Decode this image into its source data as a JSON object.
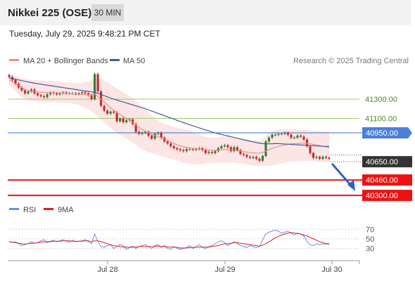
{
  "instrument": {
    "title": "Nikkei 225 (OSE)",
    "interval": "30 MIN"
  },
  "timestamp": "Tuesday, July 29, 2025 9:48:21 PM CET",
  "credit": "Research © 2025 Trading Central",
  "colors": {
    "ma20": "#f28c8c",
    "ma50": "#3f5f95",
    "band": "#fbdcdc",
    "bull": "#2e7d32",
    "bear": "#c62828",
    "resistance": "#9ccc65",
    "pivot": "#4a7fdc",
    "support": "#ee1111",
    "price": "#333333",
    "rsi": "#6e8fe0",
    "rsi_ma": "#dd2222",
    "arrow": "#2a63c6"
  },
  "legend": {
    "ma20": "MA 20 + Bollinger Bands",
    "ma50": "MA 50",
    "rsi": "RSI",
    "rsi_ma": "9MA"
  },
  "chart_data": [
    {
      "type": "candlestick",
      "x_labels": [
        "Jul 28",
        "Jul 29",
        "Jul 30"
      ],
      "ylim": [
        40250,
        41600
      ],
      "levels": [
        {
          "label": "41300.00",
          "value": 41300,
          "kind": "resistance"
        },
        {
          "label": "41100.00",
          "value": 41100,
          "kind": "resistance"
        },
        {
          "label": "40950.00",
          "value": 40950,
          "kind": "pivot"
        },
        {
          "label": "40650.00",
          "value": 40650,
          "kind": "price"
        },
        {
          "label": "40460.00",
          "value": 40460,
          "kind": "support"
        },
        {
          "label": "40300.00",
          "value": 40300,
          "kind": "support"
        }
      ],
      "close": [
        41530,
        41500,
        41460,
        41420,
        41390,
        41360,
        41380,
        41400,
        41360,
        41340,
        41330,
        41320,
        41350,
        41370,
        41360,
        41350,
        41360,
        41370,
        41360,
        41360,
        41360,
        41355,
        41360,
        41370,
        41360,
        41340,
        41300,
        41560,
        41380,
        41230,
        41180,
        41150,
        41170,
        41160,
        41070,
        41100,
        41060,
        41080,
        41090,
        41040,
        40960,
        40940,
        40950,
        40960,
        40920,
        40890,
        40940,
        40950,
        40900,
        40860,
        40840,
        40810,
        40790,
        40780,
        40770,
        40760,
        40780,
        40780,
        40775,
        40780,
        40790,
        40770,
        40740,
        40750,
        40740,
        40760,
        40790,
        40810,
        40820,
        40800,
        40760,
        40800,
        40770,
        40730,
        40720,
        40700,
        40690,
        40700,
        40680,
        40660,
        40710,
        40860,
        40900,
        40930,
        40930,
        40940,
        40940,
        40950,
        40930,
        40900,
        40900,
        40920,
        40910,
        40880,
        40810,
        40740,
        40690,
        40700,
        40680,
        40700,
        40690,
        40680
      ],
      "ma20": [
        41500,
        41480,
        41460,
        41440,
        41420,
        41400,
        41390,
        41385,
        41380,
        41375,
        41372,
        41370,
        41368,
        41366,
        41365,
        41364,
        41363,
        41362,
        41360,
        41358,
        41355,
        41352,
        41350,
        41348,
        41346,
        41344,
        41350,
        41355,
        41330,
        41300,
        41270,
        41240,
        41210,
        41185,
        41160,
        41140,
        41120,
        41100,
        41080,
        41060,
        41030,
        41005,
        40985,
        40965,
        40950,
        40935,
        40920,
        40910,
        40900,
        40885,
        40870,
        40855,
        40840,
        40825,
        40815,
        40805,
        40800,
        40795,
        40790,
        40785,
        40782,
        40778,
        40775,
        40772,
        40770,
        40770,
        40772,
        40774,
        40776,
        40775,
        40772,
        40770,
        40766,
        40760,
        40755,
        40750,
        40745,
        40742,
        40740,
        40738,
        40745,
        40760,
        40775,
        40790,
        40800,
        40810,
        40818,
        40825,
        40830,
        40835,
        40838,
        40840,
        40842,
        40843,
        40840,
        40836,
        40830,
        40825,
        40818,
        40810,
        40803,
        40796
      ],
      "ma50": [
        41520,
        41513,
        41506,
        41499,
        41492,
        41485,
        41478,
        41472,
        41466,
        41460,
        41455,
        41450,
        41445,
        41440,
        41435,
        41430,
        41425,
        41420,
        41415,
        41410,
        41405,
        41400,
        41395,
        41390,
        41385,
        41380,
        41375,
        41370,
        41360,
        41348,
        41336,
        41324,
        41312,
        41300,
        41290,
        41280,
        41270,
        41260,
        41250,
        41240,
        41230,
        41220,
        41210,
        41200,
        41188,
        41176,
        41164,
        41152,
        41140,
        41128,
        41116,
        41104,
        41092,
        41080,
        41068,
        41056,
        41045,
        41034,
        41023,
        41012,
        41001,
        40990,
        40980,
        40970,
        40960,
        40950,
        40942,
        40934,
        40926,
        40918,
        40910,
        40902,
        40894,
        40886,
        40878,
        40870,
        40863,
        40856,
        40849,
        40842,
        40838,
        40836,
        40836,
        40837,
        40838,
        40838,
        40836,
        40834,
        40832,
        40830,
        40828,
        40826,
        40824,
        40822,
        40820,
        40818,
        40816,
        40814,
        40812,
        40810,
        40809,
        40808
      ],
      "band_upper": [
        41560,
        41550,
        41540,
        41530,
        41520,
        41510,
        41505,
        41500,
        41498,
        41496,
        41494,
        41492,
        41490,
        41488,
        41486,
        41484,
        41480,
        41476,
        41472,
        41470,
        41468,
        41466,
        41466,
        41470,
        41475,
        41485,
        41500,
        41520,
        41520,
        41510,
        41490,
        41470,
        41450,
        41430,
        41410,
        41390,
        41370,
        41350,
        41330,
        41310,
        41280,
        41250,
        41220,
        41190,
        41160,
        41130,
        41100,
        41080,
        41060,
        41045,
        41030,
        41020,
        41010,
        41000,
        40995,
        40990,
        40985,
        40975,
        40965,
        40950,
        40935,
        40920,
        40910,
        40905,
        40900,
        40900,
        40905,
        40910,
        40915,
        40915,
        40910,
        40905,
        40900,
        40895,
        40890,
        40885,
        40880,
        40875,
        40870,
        40868,
        40880,
        40920,
        40950,
        40970,
        40980,
        40985,
        40988,
        40990,
        40990,
        40990,
        40988,
        40986,
        40984,
        40982,
        40978,
        40975,
        40972,
        40970,
        40968,
        40966,
        40964,
        40962
      ],
      "band_lower": [
        41440,
        41410,
        41380,
        41350,
        41320,
        41300,
        41290,
        41285,
        41280,
        41275,
        41272,
        41270,
        41268,
        41266,
        41265,
        41264,
        41263,
        41262,
        41262,
        41260,
        41255,
        41250,
        41240,
        41225,
        41210,
        41195,
        41175,
        41150,
        41120,
        41090,
        41060,
        41030,
        41000,
        40975,
        40950,
        40930,
        40910,
        40890,
        40870,
        40850,
        40825,
        40800,
        40780,
        40765,
        40750,
        40740,
        40730,
        40720,
        40710,
        40700,
        40690,
        40680,
        40670,
        40660,
        40650,
        40640,
        40635,
        40630,
        40625,
        40620,
        40620,
        40625,
        40630,
        40635,
        40640,
        40640,
        40640,
        40640,
        40640,
        40640,
        40640,
        40640,
        40635,
        40630,
        40625,
        40620,
        40615,
        40610,
        40608,
        40606,
        40605,
        40606,
        40608,
        40612,
        40618,
        40625,
        40632,
        40640,
        40645,
        40650,
        40652,
        40654,
        40656,
        40658,
        40660,
        40658,
        40656,
        40654,
        40652,
        40650,
        40648,
        40646
      ]
    },
    {
      "type": "line",
      "ticks": [
        "70",
        "50",
        "30"
      ],
      "ylim": [
        15,
        85
      ],
      "rsi": [
        45,
        42,
        44,
        40,
        36,
        38,
        40,
        44,
        41,
        42,
        46,
        48,
        42,
        45,
        47,
        44,
        46,
        48,
        45,
        43,
        47,
        44,
        45,
        46,
        48,
        44,
        40,
        60,
        45,
        34,
        32,
        36,
        38,
        30,
        34,
        38,
        36,
        28,
        32,
        35,
        30,
        34,
        36,
        38,
        34,
        30,
        36,
        38,
        32,
        36,
        30,
        28,
        34,
        30,
        28,
        30,
        32,
        36,
        30,
        34,
        38,
        32,
        30,
        34,
        36,
        40,
        44,
        46,
        42,
        36,
        40,
        44,
        40,
        36,
        34,
        32,
        36,
        34,
        32,
        34,
        48,
        60,
        64,
        66,
        68,
        66,
        62,
        64,
        66,
        62,
        58,
        62,
        60,
        56,
        44,
        38,
        36,
        40,
        38,
        40,
        39,
        39
      ],
      "rsi_ma": [
        44,
        43,
        42,
        41,
        40,
        39,
        40,
        41,
        41,
        42,
        43,
        44,
        44,
        44,
        45,
        45,
        45,
        46,
        46,
        46,
        45,
        45,
        45,
        45,
        46,
        46,
        44,
        46,
        46,
        44,
        42,
        40,
        38,
        36,
        35,
        34,
        33,
        33,
        32,
        33,
        33,
        34,
        34,
        34,
        34,
        34,
        34,
        35,
        34,
        34,
        33,
        33,
        33,
        32,
        31,
        31,
        31,
        32,
        32,
        33,
        33,
        33,
        33,
        33,
        34,
        35,
        36,
        38,
        40,
        40,
        41,
        42,
        42,
        41,
        40,
        39,
        38,
        37,
        36,
        35,
        37,
        40,
        44,
        48,
        52,
        55,
        58,
        60,
        62,
        63,
        62,
        61,
        60,
        58,
        56,
        53,
        50,
        47,
        44,
        42,
        40,
        40
      ]
    }
  ]
}
